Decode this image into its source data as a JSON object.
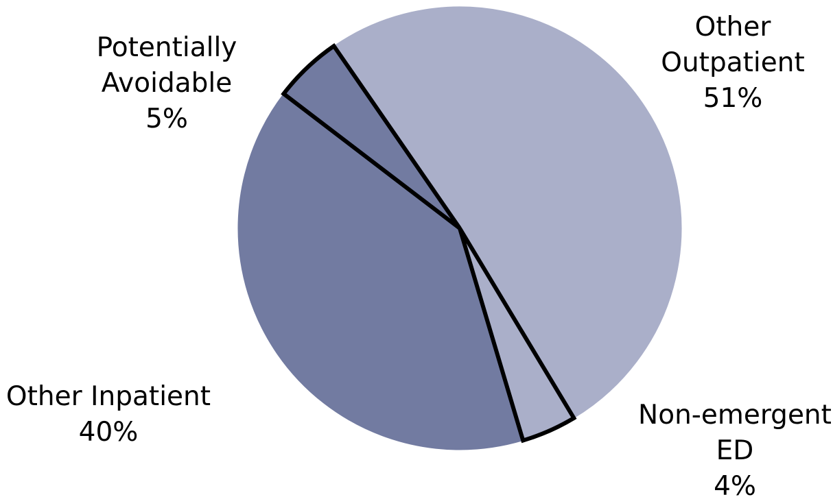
{
  "chart_data": {
    "type": "pie",
    "title": "",
    "start_angle_deg": -124.6,
    "slices": [
      {
        "label_lines": [
          "Other",
          "Outpatient"
        ],
        "pct_text": "51%",
        "value": 51,
        "color": "#aaafc9",
        "outlined": false
      },
      {
        "label_lines": [
          "Non-emergent",
          "ED"
        ],
        "pct_text": "4%",
        "value": 4,
        "color": "#aaafc9",
        "outlined": true
      },
      {
        "label_lines": [
          "Other Inpatient"
        ],
        "pct_text": "40%",
        "value": 40,
        "color": "#727ba1",
        "outlined": false
      },
      {
        "label_lines": [
          "Potentially",
          "Avoidable"
        ],
        "pct_text": "5%",
        "value": 5,
        "color": "#727ba1",
        "outlined": true
      }
    ],
    "legend": "none"
  }
}
